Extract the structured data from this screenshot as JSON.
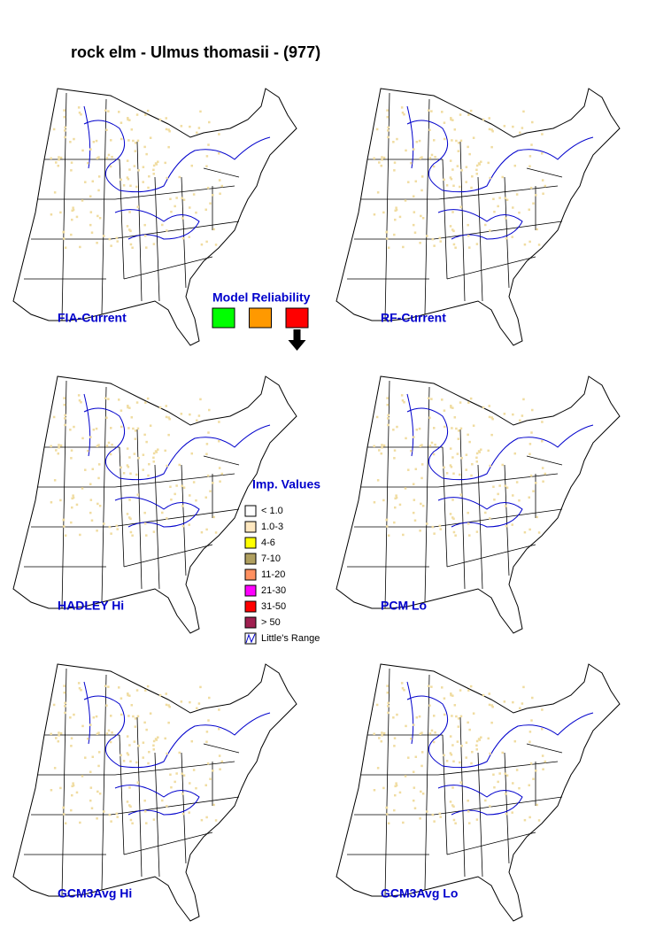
{
  "title": "rock elm - Ulmus thomasii - (977)",
  "maps": [
    {
      "label": "FIA-Current"
    },
    {
      "label": "RF-Current"
    },
    {
      "label": "HADLEY Hi"
    },
    {
      "label": "PCM Lo"
    },
    {
      "label": "GCM3Avg Hi"
    },
    {
      "label": "GCM3Avg Lo"
    }
  ],
  "model_reliability": {
    "title": "Model Reliability",
    "levels": [
      {
        "color": "#00ff00"
      },
      {
        "color": "#ff9900"
      },
      {
        "color": "#ff0000"
      }
    ],
    "selected": 2
  },
  "legend": {
    "title": "Imp. Values",
    "items": [
      {
        "label": "< 1.0",
        "color": "#ffffff"
      },
      {
        "label": "1.0-3",
        "color": "#ffe8c0"
      },
      {
        "label": "4-6",
        "color": "#ffff00"
      },
      {
        "label": "7-10",
        "color": "#b0a060"
      },
      {
        "label": "11-20",
        "color": "#ff9060"
      },
      {
        "label": "21-30",
        "color": "#ff00ff"
      },
      {
        "label": "31-50",
        "color": "#ff0000"
      },
      {
        "label": "> 50",
        "color": "#a02050"
      }
    ],
    "range_label": "Little's Range"
  }
}
